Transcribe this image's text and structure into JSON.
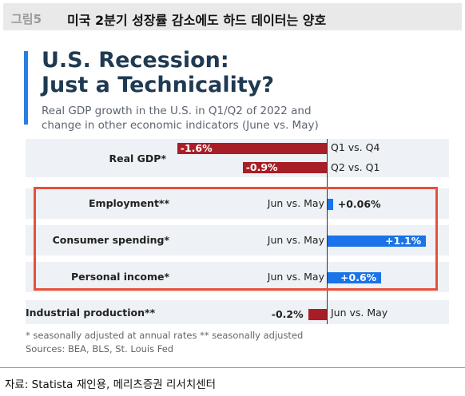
{
  "header": {
    "figure_number": "그림5",
    "title": "미국 2분기 성장률 감소에도 하드 데이터는 양호"
  },
  "card": {
    "title_line1": "U.S. Recession:",
    "title_line2": "Just a Technicality?",
    "subtitle_line1": "Real GDP growth in the U.S. in Q1/Q2 of 2022 and",
    "subtitle_line2": "change in other economic indicators (June vs. May)",
    "footnote1": "* seasonally adjusted at annual rates   ** seasonally adjusted",
    "footnote2": "Sources: BEA, BLS, St. Louis Fed"
  },
  "source": "자료: Statista 재인용, 메리츠증권 리서치센터",
  "colors": {
    "negative": "#a81e26",
    "positive": "#1a73e8",
    "highlight_border": "#e8503a",
    "title": "#1f3a52"
  },
  "chart_data": {
    "type": "bar",
    "orientation": "horizontal",
    "title": "U.S. Recession: Just a Technicality?",
    "categories": [
      "Real GDP*",
      "Employment**",
      "Consumer spending*",
      "Personal income*",
      "Industrial production**"
    ],
    "series": [
      {
        "category": "Real GDP*",
        "bars": [
          {
            "value": -1.6,
            "label": "-1.6%",
            "period": "Q1 vs. Q4"
          },
          {
            "value": -0.9,
            "label": "-0.9%",
            "period": "Q2 vs. Q1"
          }
        ]
      },
      {
        "category": "Employment**",
        "bars": [
          {
            "value": 0.06,
            "label": "+0.06%",
            "period": "Jun vs. May"
          }
        ]
      },
      {
        "category": "Consumer spending*",
        "bars": [
          {
            "value": 1.1,
            "label": "+1.1%",
            "period": "Jun vs. May"
          }
        ]
      },
      {
        "category": "Personal income*",
        "bars": [
          {
            "value": 0.6,
            "label": "+0.6%",
            "period": "Jun vs. May"
          }
        ]
      },
      {
        "category": "Industrial production**",
        "bars": [
          {
            "value": -0.2,
            "label": "-0.2%",
            "period": "Jun vs. May"
          }
        ]
      }
    ],
    "xlim": [
      -1.6,
      1.1
    ],
    "grid": false
  }
}
